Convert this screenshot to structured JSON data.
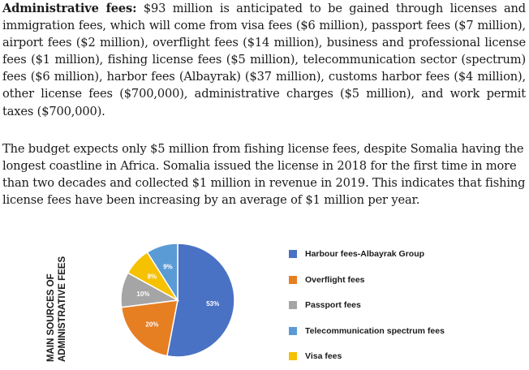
{
  "text": {
    "p1_lead": "Administrative fees:",
    "p1_body": " $93 million is anticipated to be gained through licenses and immigration fees, which will come from visa fees ($6 million), passport fees ($7 million), airport fees ($2 million), overflight fees ($14 million), business and professional license fees ($1 million), fishing license fees ($5 million), telecommunication sector (spectrum) fees ($6 million), harbor fees (Albayrak) ($37 million), customs harbor fees ($4 million), other license fees ($700,000), administrative charges ($5 million), and work permit taxes ($700,000).",
    "p2": "The budget expects only $5 million from fishing license fees, despite Somalia having the longest coastline in Africa. Somalia issued the license in 2018 for the first time in more than two decades and collected $1 million in revenue in 2019. This indicates that fishing license fees have been increasing by an average of $1 million per year."
  },
  "chart_data": {
    "type": "pie",
    "title_lines": [
      "MAIN SOURCES OF",
      "ADMINISTRATIVE FEES"
    ],
    "unit": "%",
    "slices": [
      {
        "label": "Harbour fees-Albayrak Group",
        "value": 53,
        "value_label": "53%",
        "color": "#4a72c4"
      },
      {
        "label": "Overflight fees",
        "value": 20,
        "value_label": "20%",
        "color": "#e67e22"
      },
      {
        "label": "Passport fees",
        "value": 10,
        "value_label": "10%",
        "color": "#a5a5a5"
      },
      {
        "label": "Visa fees",
        "value": 8,
        "value_label": "8%",
        "color": "#f5c100"
      },
      {
        "label": "Telecommunication spectrum fees",
        "value": 9,
        "value_label": "9%",
        "color": "#5b9bd5"
      }
    ],
    "legend": [
      {
        "label": "Harbour fees-Albayrak Group",
        "color": "#4a72c4"
      },
      {
        "label": "Overflight fees",
        "color": "#e67e22"
      },
      {
        "label": "Passport fees",
        "color": "#a5a5a5"
      },
      {
        "label": "Telecommunication spectrum fees",
        "color": "#5b9bd5"
      },
      {
        "label": "Visa fees",
        "color": "#f5c100"
      }
    ],
    "legend_placement": "right"
  }
}
